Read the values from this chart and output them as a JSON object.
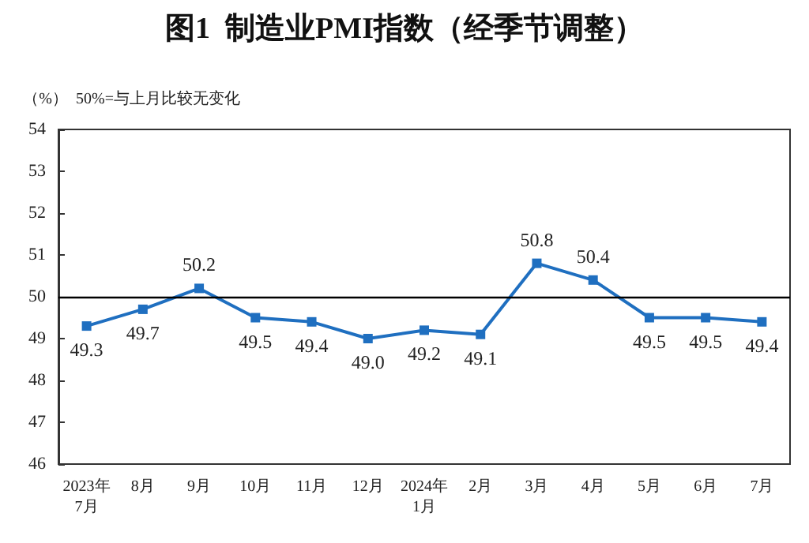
{
  "chart_data": {
    "type": "line",
    "title": "图1  制造业PMI指数（经季节调整）",
    "ylabel": "（%）",
    "annotations": [
      "50%=与上月比较无变化"
    ],
    "categories": [
      "2023年\n7月",
      "8月",
      "9月",
      "10月",
      "11月",
      "12月",
      "2024年\n1月",
      "2月",
      "3月",
      "4月",
      "5月",
      "6月",
      "7月"
    ],
    "series": [
      {
        "color": "#1f6fc0",
        "values": [
          49.3,
          49.7,
          50.2,
          49.5,
          49.4,
          49.0,
          49.2,
          49.1,
          50.8,
          50.4,
          49.5,
          49.5,
          49.4
        ],
        "value_labels": [
          "49.3",
          "49.7",
          "50.2",
          "49.5",
          "49.4",
          "49.0",
          "49.2",
          "49.1",
          "50.8",
          "50.4",
          "49.5",
          "49.5",
          "49.4"
        ]
      }
    ],
    "ylim": [
      46,
      54
    ],
    "yticks": [
      46,
      47,
      48,
      49,
      50,
      51,
      52,
      53,
      54
    ],
    "ref_lines": [
      {
        "axis": "y",
        "value": 50,
        "color": "#000000"
      }
    ],
    "marker": "square",
    "line_style": "solid",
    "grid": false
  }
}
